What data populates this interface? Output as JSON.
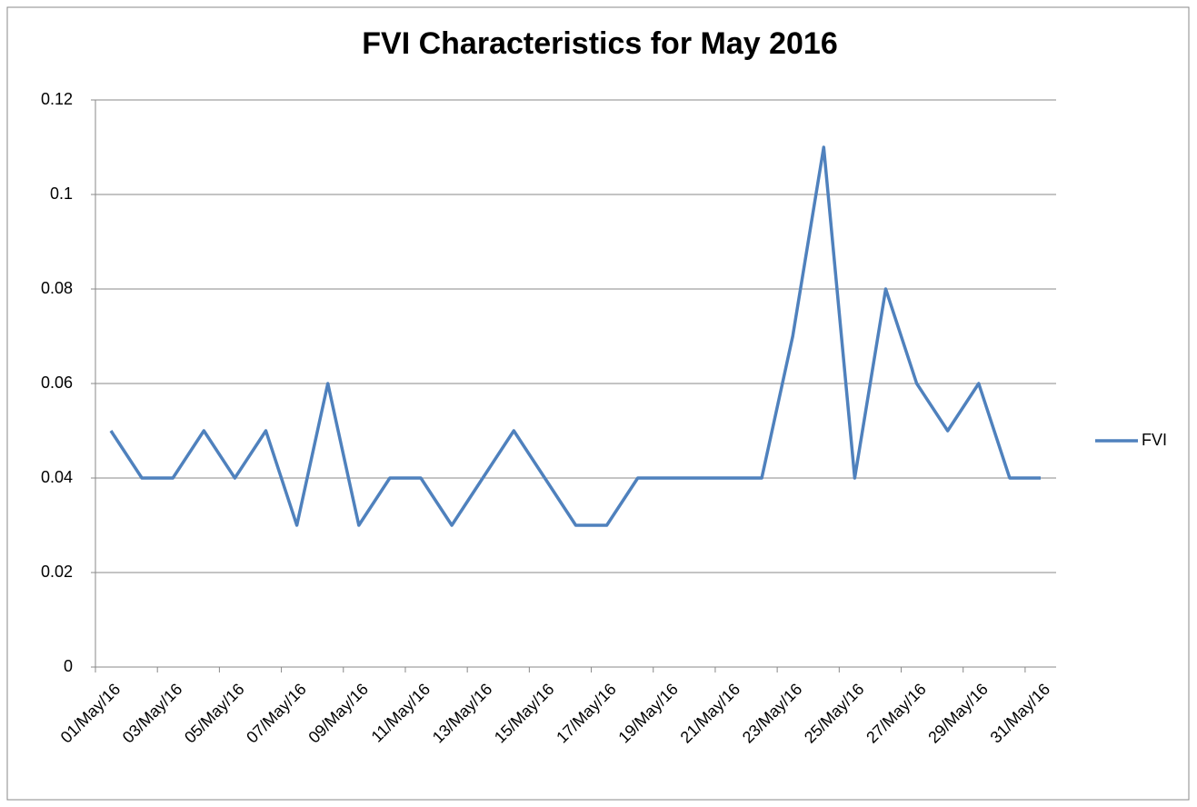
{
  "chart_data": {
    "type": "line",
    "title": "FVI Characteristics for May 2016",
    "categories": [
      "01/May/16",
      null,
      "03/May/16",
      null,
      "05/May/16",
      null,
      "07/May/16",
      null,
      "09/May/16",
      null,
      "11/May/16",
      null,
      "13/May/16",
      null,
      "15/May/16",
      null,
      "17/May/16",
      null,
      "19/May/16",
      null,
      "21/May/16",
      null,
      "23/May/16",
      null,
      "25/May/16",
      null,
      "27/May/16",
      null,
      "29/May/16",
      null,
      "31/May/16"
    ],
    "series": [
      {
        "name": "FVI",
        "color": "#4f81bd",
        "values": [
          0.05,
          0.04,
          0.04,
          0.05,
          0.04,
          0.05,
          0.03,
          0.06,
          0.03,
          0.04,
          0.04,
          0.03,
          0.04,
          0.05,
          0.04,
          0.03,
          0.03,
          0.04,
          0.04,
          0.04,
          0.04,
          0.04,
          0.07,
          0.11,
          0.04,
          0.08,
          0.06,
          0.05,
          0.06,
          0.04,
          0.04
        ]
      }
    ],
    "ylim": [
      0,
      0.12
    ],
    "yticks": [
      0,
      0.02,
      0.04,
      0.06,
      0.08,
      0.1,
      0.12
    ],
    "grid": true,
    "legend": "right"
  }
}
